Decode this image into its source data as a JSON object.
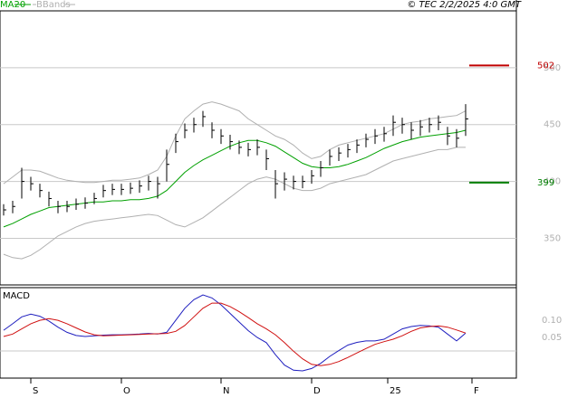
{
  "chart_data": {
    "type": "ohlc",
    "legend": [
      "MA20",
      "BBands"
    ],
    "copyright": "© TEC 2/2/2025 4:0 GMT",
    "xlim": [
      -0.4,
      56.6
    ],
    "xticks": [
      {
        "value": 3,
        "label": "S"
      },
      {
        "value": 13,
        "label": "O"
      },
      {
        "value": 24,
        "label": "N"
      },
      {
        "value": 34,
        "label": "D"
      },
      {
        "value": 42.4,
        "label": "25"
      },
      {
        "value": 51.7,
        "label": "F"
      }
    ],
    "ylim": [
      309,
      550
    ],
    "yticks": [
      350,
      400,
      450,
      500
    ],
    "grid": true,
    "bar_color": "#000000",
    "high": [
      380,
      383,
      412,
      404,
      398,
      391,
      383,
      383,
      385,
      386,
      390,
      397,
      398,
      398,
      399,
      401,
      405,
      404,
      428,
      442,
      451,
      456,
      462,
      452,
      446,
      441,
      436,
      434,
      437,
      428,
      410,
      408,
      405,
      405,
      410,
      418,
      428,
      430,
      433,
      437,
      442,
      446,
      448,
      458,
      456,
      452,
      454,
      456,
      458,
      448,
      446,
      468
    ],
    "low": [
      370,
      372,
      385,
      392,
      386,
      378,
      372,
      373,
      375,
      376,
      380,
      386,
      388,
      388,
      389,
      390,
      392,
      385,
      400,
      425,
      438,
      443,
      448,
      438,
      433,
      428,
      424,
      422,
      423,
      410,
      385,
      392,
      393,
      394,
      398,
      404,
      414,
      418,
      421,
      425,
      430,
      433,
      435,
      440,
      442,
      437,
      440,
      443,
      445,
      432,
      430,
      440
    ],
    "close": [
      375,
      378,
      400,
      398,
      392,
      385,
      378,
      378,
      380,
      381,
      385,
      392,
      393,
      393,
      394,
      396,
      400,
      398,
      415,
      435,
      445,
      450,
      457,
      445,
      440,
      435,
      430,
      428,
      430,
      420,
      398,
      402,
      400,
      400,
      405,
      412,
      422,
      425,
      428,
      432,
      437,
      440,
      442,
      452,
      450,
      445,
      448,
      450,
      452,
      440,
      438,
      455
    ],
    "series": [
      {
        "name": "MA20",
        "color": "#00a000",
        "values": [
          360,
          363,
          367,
          371,
          374,
          377,
          378,
          379,
          380,
          381,
          382,
          382,
          383,
          383,
          384,
          384,
          385,
          387,
          392,
          400,
          408,
          414,
          419,
          423,
          427,
          431,
          434,
          436,
          436,
          434,
          431,
          426,
          421,
          416,
          413,
          412,
          412,
          413,
          415,
          418,
          421,
          425,
          429,
          432,
          435,
          437,
          439,
          440,
          441,
          442,
          443,
          445
        ]
      },
      {
        "name": "BBands",
        "color": "#b0b0b0",
        "values": [
          398,
          404,
          410,
          410,
          409,
          406,
          403,
          401,
          400,
          399,
          399,
          400,
          401,
          401,
          402,
          403,
          406,
          410,
          422,
          440,
          455,
          462,
          468,
          470,
          468,
          465,
          462,
          455,
          450,
          445,
          440,
          437,
          432,
          425,
          420,
          422,
          428,
          432,
          434,
          436,
          438,
          440,
          442,
          446,
          450,
          452,
          453,
          455,
          456,
          457,
          458,
          462
        ]
      },
      {
        "name": "BBands",
        "color": "#b0b0b0",
        "values": [
          336,
          333,
          332,
          335,
          340,
          346,
          352,
          356,
          360,
          363,
          365,
          366,
          367,
          368,
          369,
          370,
          371,
          370,
          366,
          362,
          360,
          364,
          368,
          374,
          380,
          386,
          392,
          398,
          402,
          404,
          402,
          398,
          394,
          392,
          392,
          394,
          398,
          400,
          402,
          404,
          406,
          410,
          414,
          418,
          420,
          422,
          424,
          426,
          428,
          428,
          430,
          430
        ]
      }
    ],
    "levels": [
      {
        "value": 502,
        "color": "#c00000"
      },
      {
        "value": 399,
        "color": "#008000"
      }
    ],
    "macd": {
      "title": "MACD",
      "ylim": [
        -0.068,
        0.195
      ],
      "yticks": [
        {
          "value": 0.1,
          "label": "0.10"
        },
        {
          "value": 0.05,
          "label": "0.05"
        }
      ],
      "series": [
        {
          "color": "#1f1fbf",
          "values": [
            0.071,
            0.09,
            0.11,
            0.118,
            0.112,
            0.098,
            0.08,
            0.065,
            0.056,
            0.053,
            0.055,
            0.057,
            0.058,
            0.058,
            0.059,
            0.06,
            0.062,
            0.06,
            0.065,
            0.1,
            0.135,
            0.16,
            0.174,
            0.165,
            0.145,
            0.12,
            0.095,
            0.07,
            0.05,
            0.035,
            0.0,
            -0.03,
            -0.045,
            -0.047,
            -0.04,
            -0.025,
            -0.005,
            0.012,
            0.028,
            0.036,
            0.04,
            0.04,
            0.045,
            0.06,
            0.075,
            0.082,
            0.085,
            0.084,
            0.08,
            0.06,
            0.04,
            0.063
          ]
        },
        {
          "color": "#d01010",
          "values": [
            0.053,
            0.06,
            0.075,
            0.09,
            0.1,
            0.105,
            0.1,
            0.09,
            0.078,
            0.066,
            0.058,
            0.055,
            0.056,
            0.057,
            0.058,
            0.059,
            0.06,
            0.061,
            0.062,
            0.068,
            0.085,
            0.11,
            0.135,
            0.15,
            0.15,
            0.14,
            0.125,
            0.108,
            0.09,
            0.075,
            0.058,
            0.035,
            0.01,
            -0.012,
            -0.028,
            -0.032,
            -0.028,
            -0.02,
            -0.008,
            0.005,
            0.018,
            0.03,
            0.038,
            0.045,
            0.055,
            0.068,
            0.078,
            0.082,
            0.084,
            0.08,
            0.072,
            0.063
          ]
        }
      ]
    }
  }
}
